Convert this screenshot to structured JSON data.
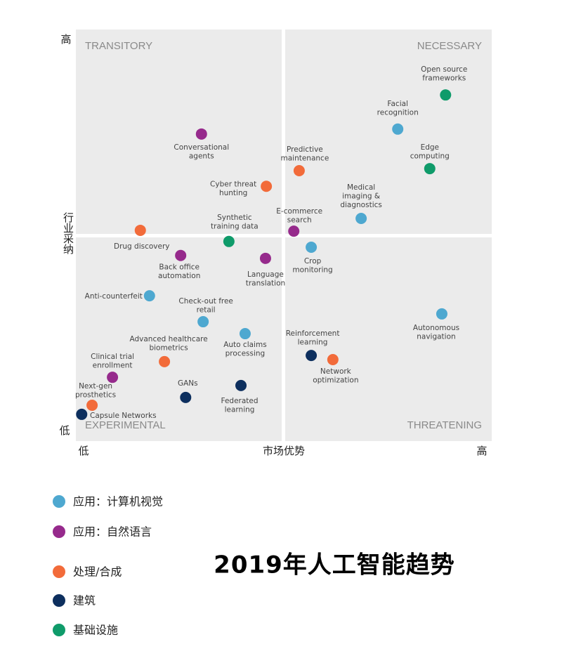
{
  "chart_data": {
    "type": "scatter",
    "title": "2019年人工智能趋势",
    "x_axis": {
      "label": "市场优势",
      "low": "低",
      "high": "高"
    },
    "y_axis": {
      "label": "行业采纳",
      "low": "低",
      "high": "高"
    },
    "quadrants": {
      "top_left": "TRANSITORY",
      "top_right": "NECESSARY",
      "bottom_left": "EXPERIMENTAL",
      "bottom_right": "THREATENING"
    },
    "xlim": [
      0,
      100
    ],
    "ylim": [
      0,
      100
    ],
    "series": [
      {
        "name": "应用：计算机视觉",
        "color": "#4ea8d0",
        "labels": [
          [
            "Facial",
            "recognition"
          ],
          [
            "Medical",
            "imaging &",
            "diagnostics"
          ],
          [
            "Crop",
            "monitoring"
          ],
          [
            "Anti-counterfeit"
          ],
          [
            "Check-out free",
            "retail"
          ],
          [
            "Autonomous",
            "navigation"
          ],
          [
            "Auto claims",
            "processing"
          ]
        ],
        "x": [
          77.4,
          68.6,
          56.6,
          17.7,
          30.6,
          88.0,
          40.7
        ],
        "y": [
          75.8,
          54.1,
          47.1,
          35.3,
          29.0,
          30.9,
          26.1
        ]
      },
      {
        "name": "应用：自然语言",
        "color": "#962a8c",
        "labels": [
          [
            "Conversational",
            "agents"
          ],
          [
            "E-commerce",
            "search"
          ],
          [
            "Back office",
            "automation"
          ],
          [
            "Language",
            "translation"
          ],
          [
            "Clinical trial",
            "enrollment"
          ]
        ],
        "x": [
          30.2,
          52.4,
          25.2,
          45.6,
          8.8
        ],
        "y": [
          74.6,
          51.0,
          45.1,
          44.4,
          15.5
        ]
      },
      {
        "name": "处理/合成",
        "color": "#f26b3a",
        "labels": [
          [
            "Predictive",
            "maintenance"
          ],
          [
            "Cyber threat",
            "hunting"
          ],
          [
            "Drug discovery"
          ],
          [
            "Network",
            "optimization"
          ],
          [
            "Advanced healthcare",
            "biometrics"
          ],
          [
            "Next-gen",
            "prosthetics"
          ]
        ],
        "x": [
          53.7,
          45.8,
          15.5,
          61.8,
          21.3,
          3.9
        ],
        "y": [
          65.7,
          61.9,
          51.2,
          19.8,
          19.3,
          8.7
        ]
      },
      {
        "name": "建筑",
        "color": "#0d2f5e",
        "labels": [
          [
            "Reinforcement",
            "learning"
          ],
          [
            "Federated",
            "learning"
          ],
          [
            "GANs"
          ],
          [
            "Capsule Networks"
          ]
        ],
        "x": [
          56.6,
          39.7,
          26.4,
          1.4
        ],
        "y": [
          20.8,
          13.5,
          10.6,
          6.5
        ]
      },
      {
        "name": "基础设施",
        "color": "#0f9b6a",
        "labels": [
          [
            "Open source",
            "frameworks"
          ],
          [
            "Edge",
            "computing"
          ],
          [
            "Synthetic",
            "training data"
          ]
        ],
        "x": [
          88.9,
          85.1,
          36.8
        ],
        "y": [
          84.1,
          66.2,
          48.5
        ]
      }
    ]
  }
}
